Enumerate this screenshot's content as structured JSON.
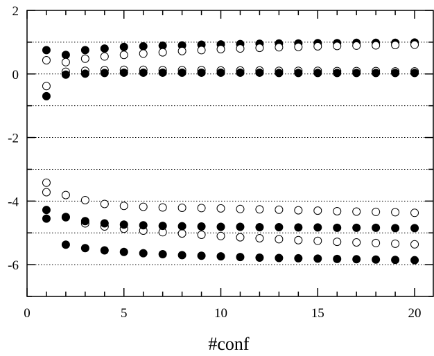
{
  "chart_data": {
    "type": "scatter",
    "title": "",
    "xlabel": "#conf",
    "ylabel": "",
    "xlim": [
      0,
      21
    ],
    "ylim": [
      -7,
      2
    ],
    "xticks": [
      0,
      5,
      10,
      15,
      20
    ],
    "yticks": [
      2,
      0,
      -2,
      -4,
      -6
    ],
    "x_tick_labels": [
      "0",
      "5",
      "10",
      "15",
      "20"
    ],
    "y_tick_labels": [
      "2",
      "0",
      "-2",
      "-4",
      "-6"
    ],
    "grid": "horizontal dotted at each integer y",
    "series": [
      {
        "marker": "filled",
        "x": [
          1,
          2,
          3,
          4,
          5,
          6,
          7,
          8,
          9,
          10,
          11,
          12,
          13,
          14,
          15,
          16,
          17,
          18,
          19,
          20
        ],
        "values": [
          0.75,
          0.6,
          0.75,
          0.8,
          0.85,
          0.87,
          0.89,
          0.9,
          0.92,
          0.93,
          0.94,
          0.95,
          0.96,
          0.96,
          0.97,
          0.97,
          0.98,
          0.98,
          0.98,
          0.99
        ]
      },
      {
        "marker": "open",
        "x": [
          1,
          2,
          3,
          4,
          5,
          6,
          7,
          8,
          9,
          10,
          11,
          12,
          13,
          14,
          15,
          16,
          17,
          18,
          19,
          20
        ],
        "values": [
          0.43,
          0.37,
          0.48,
          0.55,
          0.6,
          0.64,
          0.68,
          0.72,
          0.75,
          0.78,
          0.8,
          0.82,
          0.84,
          0.85,
          0.87,
          0.88,
          0.89,
          0.9,
          0.91,
          0.92
        ]
      },
      {
        "marker": "open",
        "x": [
          1,
          2,
          3,
          4,
          5,
          6,
          7,
          8,
          9,
          10,
          11,
          12,
          13,
          14,
          15,
          16,
          17,
          18,
          19,
          20
        ],
        "values": [
          -0.38,
          0.07,
          0.1,
          0.12,
          0.13,
          0.13,
          0.12,
          0.12,
          0.12,
          0.11,
          0.11,
          0.11,
          0.1,
          0.1,
          0.1,
          0.09,
          0.09,
          0.09,
          0.08,
          0.08
        ]
      },
      {
        "marker": "filled",
        "x": [
          1,
          2,
          3,
          4,
          5,
          6,
          7,
          8,
          9,
          10,
          11,
          12,
          13,
          14,
          15,
          16,
          17,
          18,
          19,
          20
        ],
        "values": [
          -0.7,
          -0.02,
          0.01,
          0.03,
          0.04,
          0.04,
          0.04,
          0.04,
          0.04,
          0.04,
          0.04,
          0.04,
          0.03,
          0.03,
          0.03,
          0.03,
          0.03,
          0.03,
          0.03,
          0.03
        ]
      },
      {
        "marker": "open",
        "x": [
          1,
          2,
          3,
          4,
          5,
          6,
          7,
          8,
          9,
          10,
          11,
          12,
          13,
          14,
          15,
          16,
          17,
          18,
          19,
          20
        ],
        "values": [
          -3.42,
          -3.81,
          -3.97,
          -4.09,
          -4.15,
          -4.18,
          -4.2,
          -4.21,
          -4.22,
          -4.23,
          -4.25,
          -4.26,
          -4.27,
          -4.29,
          -4.3,
          -4.32,
          -4.33,
          -4.34,
          -4.35,
          -4.37
        ]
      },
      {
        "marker": "open",
        "x": [
          1,
          2,
          3,
          4,
          5,
          6,
          7,
          8,
          9,
          10,
          11,
          12,
          13,
          14,
          15,
          16,
          17,
          18,
          19,
          20
        ],
        "values": [
          -3.72,
          -4.5,
          -4.7,
          -4.8,
          -4.87,
          -4.93,
          -4.98,
          -5.02,
          -5.06,
          -5.1,
          -5.14,
          -5.17,
          -5.2,
          -5.23,
          -5.25,
          -5.28,
          -5.3,
          -5.32,
          -5.34,
          -5.36
        ]
      },
      {
        "marker": "filled",
        "x": [
          1,
          2,
          3,
          4,
          5,
          6,
          7,
          8,
          9,
          10,
          11,
          12,
          13,
          14,
          15,
          16,
          17,
          18,
          19,
          20
        ],
        "values": [
          -4.28,
          -4.51,
          -4.63,
          -4.7,
          -4.74,
          -4.76,
          -4.78,
          -4.79,
          -4.8,
          -4.81,
          -4.81,
          -4.82,
          -4.82,
          -4.83,
          -4.83,
          -4.84,
          -4.84,
          -4.84,
          -4.85,
          -4.85
        ]
      },
      {
        "marker": "filled",
        "x": [
          1,
          2,
          3,
          4,
          5,
          6,
          7,
          8,
          9,
          10,
          11,
          12,
          13,
          14,
          15,
          16,
          17,
          18,
          19,
          20
        ],
        "values": [
          -4.55,
          -5.37,
          -5.48,
          -5.55,
          -5.6,
          -5.64,
          -5.67,
          -5.7,
          -5.72,
          -5.74,
          -5.76,
          -5.78,
          -5.79,
          -5.8,
          -5.81,
          -5.82,
          -5.83,
          -5.84,
          -5.85,
          -5.86
        ]
      }
    ]
  }
}
